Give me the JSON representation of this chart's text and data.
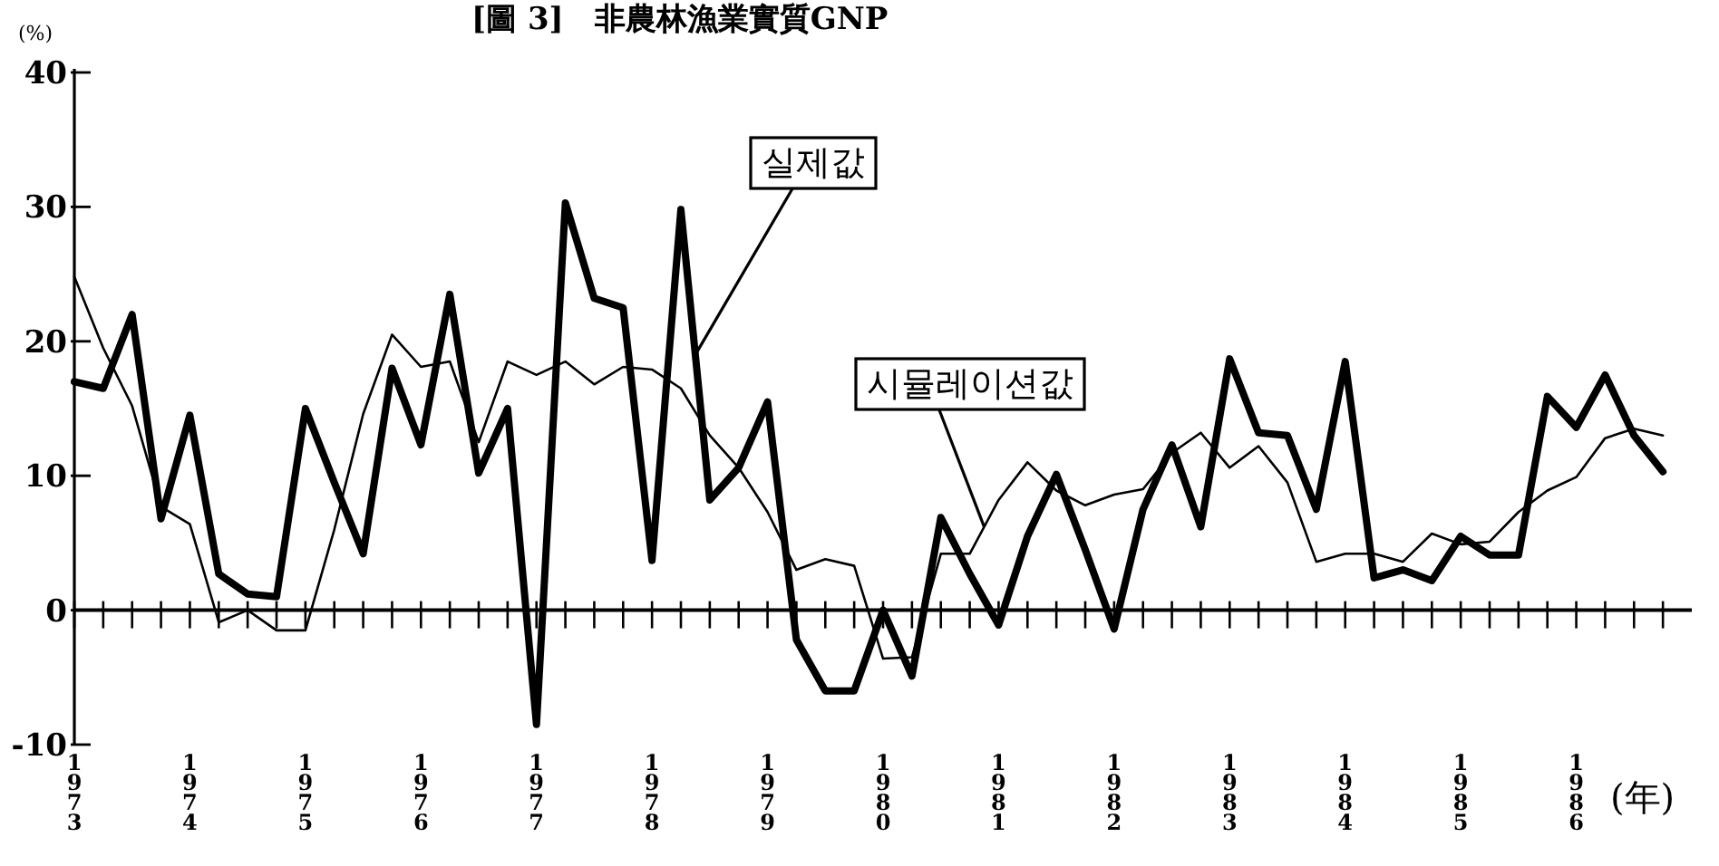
{
  "chart_data": {
    "type": "line",
    "title": "[圖 3]　非農林漁業實質GNP",
    "ylabel": "(%)",
    "xlabel": "(年)",
    "x": [
      1973,
      1973.25,
      1973.5,
      1973.75,
      1974,
      1974.25,
      1974.5,
      1974.75,
      1975,
      1975.25,
      1975.5,
      1975.75,
      1976,
      1976.25,
      1976.5,
      1976.75,
      1977,
      1977.25,
      1977.5,
      1977.75,
      1978,
      1978.25,
      1978.5,
      1978.75,
      1979,
      1979.25,
      1979.5,
      1979.75,
      1980,
      1980.25,
      1980.5,
      1980.75,
      1981,
      1981.25,
      1981.5,
      1981.75,
      1982,
      1982.25,
      1982.5,
      1982.75,
      1983,
      1983.25,
      1983.5,
      1983.75,
      1984,
      1984.25,
      1984.5,
      1984.75,
      1985,
      1985.25,
      1985.5,
      1985.75,
      1986,
      1986.25,
      1986.5,
      1986.75
    ],
    "series": [
      {
        "name": "실제값",
        "color": "#000000",
        "values": [
          17,
          16.5,
          22,
          6.8,
          14.5,
          2.7,
          1.2,
          1,
          15,
          9.5,
          4.2,
          18,
          12.3,
          23.5,
          10.2,
          15,
          -8.5,
          30.3,
          23.2,
          22.5,
          3.7,
          29.8,
          8.2,
          10.6,
          15.5,
          -2.2,
          -6,
          -6,
          0,
          -4.9,
          6.9,
          2.7,
          -1.1,
          5.5,
          10.1,
          4.5,
          -1.4,
          7.5,
          12.3,
          6.2,
          18.7,
          13.2,
          13,
          7.5,
          18.5,
          2.4,
          3,
          2.2,
          5.5,
          4.1,
          4.1,
          15.9,
          13.6,
          17.5,
          13,
          10.3
        ]
      },
      {
        "name": "시뮬레이션값",
        "color": "#000000",
        "values": [
          24.8,
          19.5,
          15.2,
          7.7,
          6.4,
          -0.9,
          0,
          -1.5,
          -1.5,
          6,
          14.6,
          20.5,
          18.1,
          18.5,
          12.5,
          18.5,
          17.5,
          18.5,
          16.8,
          18.1,
          17.9,
          16.5,
          13,
          10.6,
          7.3,
          3,
          3.8,
          3.3,
          -3.6,
          -3.5,
          4.2,
          4.2,
          8.2,
          11,
          8.9,
          7.8,
          8.6,
          9,
          11.7,
          13.2,
          10.6,
          12.2,
          9.5,
          3.6,
          4.2,
          4.2,
          3.6,
          5.7,
          4.9,
          5.1,
          7.3,
          8.9,
          9.9,
          12.8,
          13.5,
          13
        ]
      }
    ],
    "xlim": [
      1973,
      1987
    ],
    "xticks": [
      1973,
      {
        "value": 1973.25,
        "label": null
      },
      {
        "value": 1973.5,
        "label": null
      },
      {
        "value": 1973.75,
        "label": null
      },
      1974,
      {
        "value": 1974.25,
        "label": null
      },
      {
        "value": 1974.5,
        "label": null
      },
      {
        "value": 1974.75,
        "label": null
      },
      1975,
      {
        "value": 1975.25,
        "label": null
      },
      {
        "value": 1975.5,
        "label": null
      },
      {
        "value": 1975.75,
        "label": null
      },
      1976,
      {
        "value": 1976.25,
        "label": null
      },
      {
        "value": 1976.5,
        "label": null
      },
      {
        "value": 1976.75,
        "label": null
      },
      1977,
      {
        "value": 1977.25,
        "label": null
      },
      {
        "value": 1977.5,
        "label": null
      },
      {
        "value": 1977.75,
        "label": null
      },
      1978,
      {
        "value": 1978.25,
        "label": null
      },
      {
        "value": 1978.5,
        "label": null
      },
      {
        "value": 1978.75,
        "label": null
      },
      1979,
      {
        "value": 1979.25,
        "label": null
      },
      {
        "value": 1979.5,
        "label": null
      },
      {
        "value": 1979.75,
        "label": null
      },
      1980,
      {
        "value": 1980.25,
        "label": null
      },
      {
        "value": 1980.5,
        "label": null
      },
      {
        "value": 1980.75,
        "label": null
      },
      1981,
      {
        "value": 1981.25,
        "label": null
      },
      {
        "value": 1981.5,
        "label": null
      },
      {
        "value": 1981.75,
        "label": null
      },
      1982,
      {
        "value": 1982.25,
        "label": null
      },
      {
        "value": 1982.5,
        "label": null
      },
      {
        "value": 1982.75,
        "label": null
      },
      1983,
      {
        "value": 1983.25,
        "label": null
      },
      {
        "value": 1983.5,
        "label": null
      },
      {
        "value": 1983.75,
        "label": null
      },
      1984,
      {
        "value": 1984.25,
        "label": null
      },
      {
        "value": 1984.5,
        "label": null
      },
      {
        "value": 1984.75,
        "label": null
      },
      1985,
      {
        "value": 1985.25,
        "label": null
      },
      {
        "value": 1985.5,
        "label": null
      },
      {
        "value": 1985.75,
        "label": null
      },
      1986,
      {
        "value": 1986.25,
        "label": null
      },
      {
        "value": 1986.5,
        "label": null
      },
      {
        "value": 1986.75,
        "label": null
      }
    ],
    "ylim": [
      -10,
      40
    ],
    "yticks": [
      -10,
      0,
      10,
      20,
      30,
      40
    ],
    "ref_lines": [
      {
        "axis": "y",
        "value": 0
      }
    ],
    "grid": false,
    "legend": false,
    "marker": "none",
    "line_style": "solid"
  }
}
